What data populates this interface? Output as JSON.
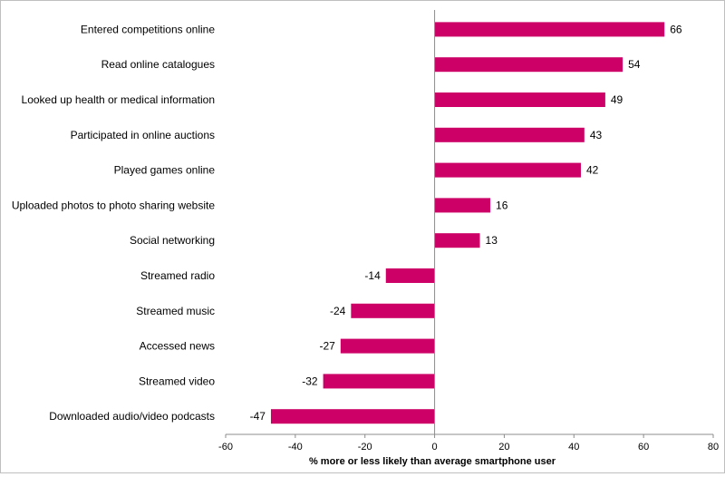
{
  "chart_data": {
    "type": "bar",
    "orientation": "horizontal",
    "categories": [
      "Entered competitions online",
      "Read online catalogues",
      "Looked up health or medical information",
      "Participated in online auctions",
      "Played games online",
      "Uploaded photos to photo sharing website",
      "Social networking",
      "Streamed radio",
      "Streamed music",
      "Accessed news",
      "Streamed video",
      "Downloaded audio/video podcasts"
    ],
    "values": [
      66,
      54,
      49,
      43,
      42,
      16,
      13,
      -14,
      -24,
      -27,
      -32,
      -47
    ],
    "data_labels": [
      "66",
      "54",
      "49",
      "43",
      "42",
      "16",
      "13",
      "-14",
      "-24",
      "-27",
      "-32",
      "-47"
    ],
    "xlabel": "% more or less likely than average smartphone  user",
    "ylabel": "",
    "title": "",
    "xlim": [
      -60,
      80
    ],
    "xticks": [
      -60,
      -40,
      -20,
      0,
      20,
      40,
      60,
      80
    ],
    "xtick_labels": [
      "-60",
      "-40",
      "-20",
      "0",
      "20",
      "40",
      "60",
      "80"
    ],
    "grid": false,
    "legend": "none",
    "bar_color": "#cc0066"
  }
}
